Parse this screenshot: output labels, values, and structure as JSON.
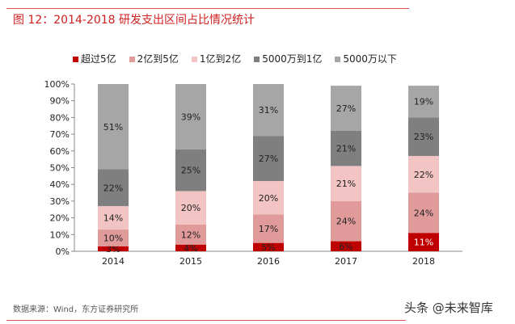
{
  "title": "图 12：2014-2018 研发支出区间占比情况统计",
  "source": "数据来源：Wind，东方证券研究所",
  "watermark": "头条 @未来智库",
  "chart_data": {
    "type": "bar",
    "stacked": true,
    "categories": [
      "2014",
      "2015",
      "2016",
      "2017",
      "2018"
    ],
    "ylim": [
      0,
      100
    ],
    "yticks": [
      "0%",
      "10%",
      "20%",
      "30%",
      "40%",
      "50%",
      "60%",
      "70%",
      "80%",
      "90%",
      "100%"
    ],
    "legend_position": "top",
    "grid": false,
    "series": [
      {
        "name": "超过5亿",
        "color": "#c00000",
        "values": [
          3,
          4,
          5,
          6,
          11
        ]
      },
      {
        "name": "2亿到5亿",
        "color": "#e09a9a",
        "values": [
          10,
          12,
          17,
          24,
          24
        ]
      },
      {
        "name": "1亿到2亿",
        "color": "#f2c4c4",
        "values": [
          14,
          20,
          20,
          21,
          22
        ]
      },
      {
        "name": "5000万到1亿",
        "color": "#7f7f7f",
        "values": [
          22,
          25,
          27,
          21,
          23
        ]
      },
      {
        "name": "5000万以下",
        "color": "#a6a6a6",
        "values": [
          51,
          39,
          31,
          27,
          19
        ]
      }
    ]
  }
}
